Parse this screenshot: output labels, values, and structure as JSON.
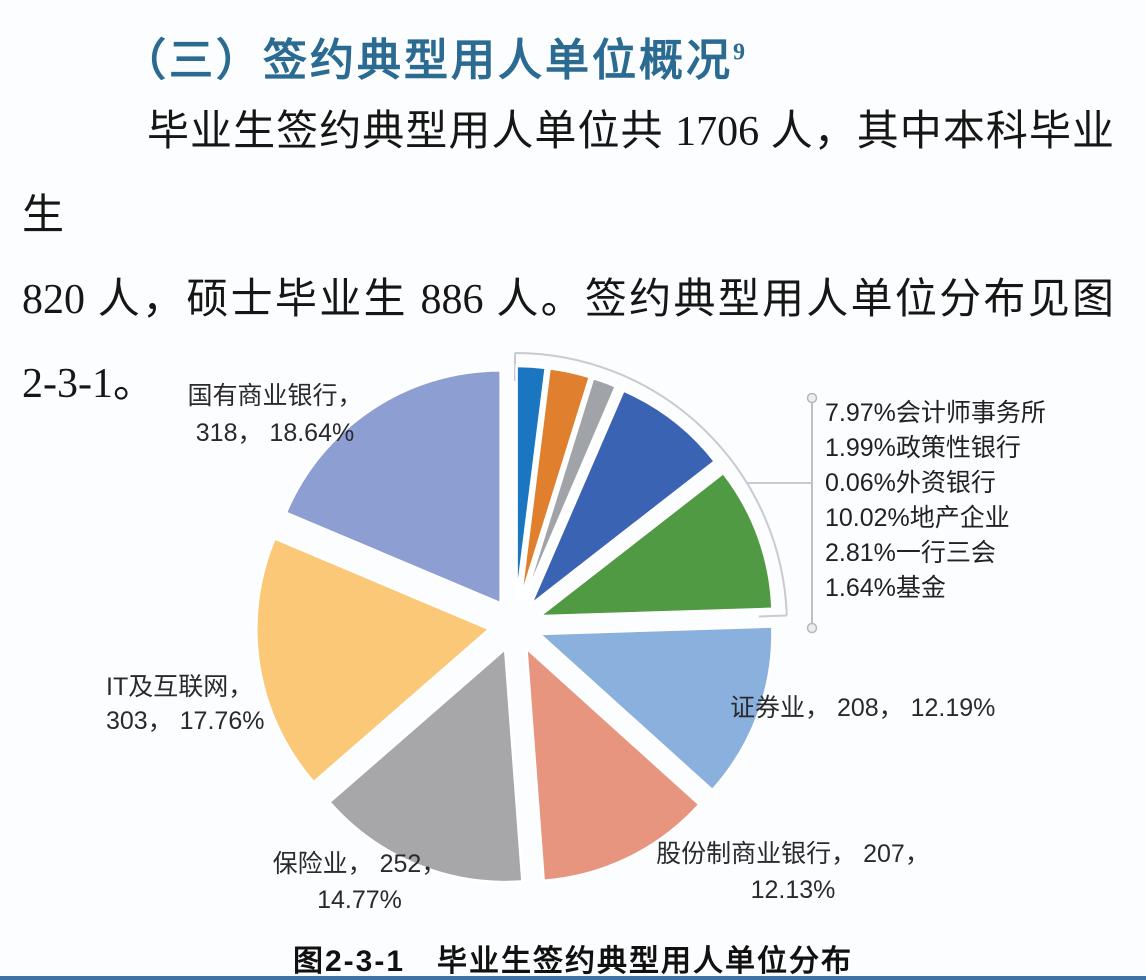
{
  "page": {
    "heading": {
      "text": "（三）签约典型用人单位概况",
      "superscript": "9"
    },
    "paragraph_lines": [
      "毕业生签约典型用人单位共 1706 人，其中本科毕业生",
      "820 人，硕士毕业生 886 人。签约典型用人单位分布见图",
      "2-3-1。"
    ],
    "caption": "图2-3-1　毕业生签约典型用人单位分布"
  },
  "chart_data": {
    "type": "pie",
    "title": "图2-3-1 毕业生签约典型用人单位分布",
    "total_people": 1706,
    "layout": {
      "start_angle_deg": 0,
      "clockwise": true,
      "exploded": true,
      "legend_position": "right-callout"
    },
    "slices": [
      {
        "key": "policy-banks",
        "name": "政策性银行",
        "pct": 1.99,
        "color": "#1b76c1"
      },
      {
        "key": "regulators",
        "name": "一行三会",
        "pct": 2.81,
        "color": "#e07f2d"
      },
      {
        "key": "funds",
        "name": "基金",
        "pct": 1.64,
        "color": "#a0a4a9"
      },
      {
        "key": "foreign-banks",
        "name": "外资银行",
        "pct": 0.06,
        "color": "#e3c34d"
      },
      {
        "key": "accounting-firms",
        "name": "会计师事务所",
        "pct": 7.97,
        "color": "#3b63b4"
      },
      {
        "key": "real-estate",
        "name": "地产企业",
        "pct": 10.02,
        "color": "#4f9a42"
      },
      {
        "key": "securities",
        "name": "证券业",
        "pct": 12.19,
        "count": 208,
        "color": "#8ab1dd"
      },
      {
        "key": "joint-stock-banks",
        "name": "股份制商业银行",
        "pct": 12.13,
        "count": 207,
        "color": "#e8957f"
      },
      {
        "key": "insurance",
        "name": "保险业",
        "pct": 14.77,
        "count": 252,
        "color": "#a7a7aa"
      },
      {
        "key": "it-internet",
        "name": "IT及互联网",
        "pct": 17.76,
        "count": 303,
        "color": "#fac877"
      },
      {
        "key": "state-owned-banks",
        "name": "国有商业银行",
        "pct": 18.64,
        "count": 318,
        "color": "#8d9ed2"
      }
    ]
  },
  "labels": {
    "state_owned": [
      "国有商业银行，",
      "318， 18.64%"
    ],
    "it_internet": [
      "IT及互联网，",
      "303， 17.76%"
    ],
    "insurance": [
      "保险业， 252，",
      "14.77%"
    ],
    "joint_stock": [
      "股份制商业银行， 207，",
      "12.13%"
    ],
    "securities": "证券业， 208， 12.19%",
    "side_list": [
      "7.97%会计师事务所",
      "1.99%政策性银行",
      "0.06%外资银行",
      "10.02%地产企业",
      "2.81%一行三会",
      "1.64%基金"
    ]
  }
}
